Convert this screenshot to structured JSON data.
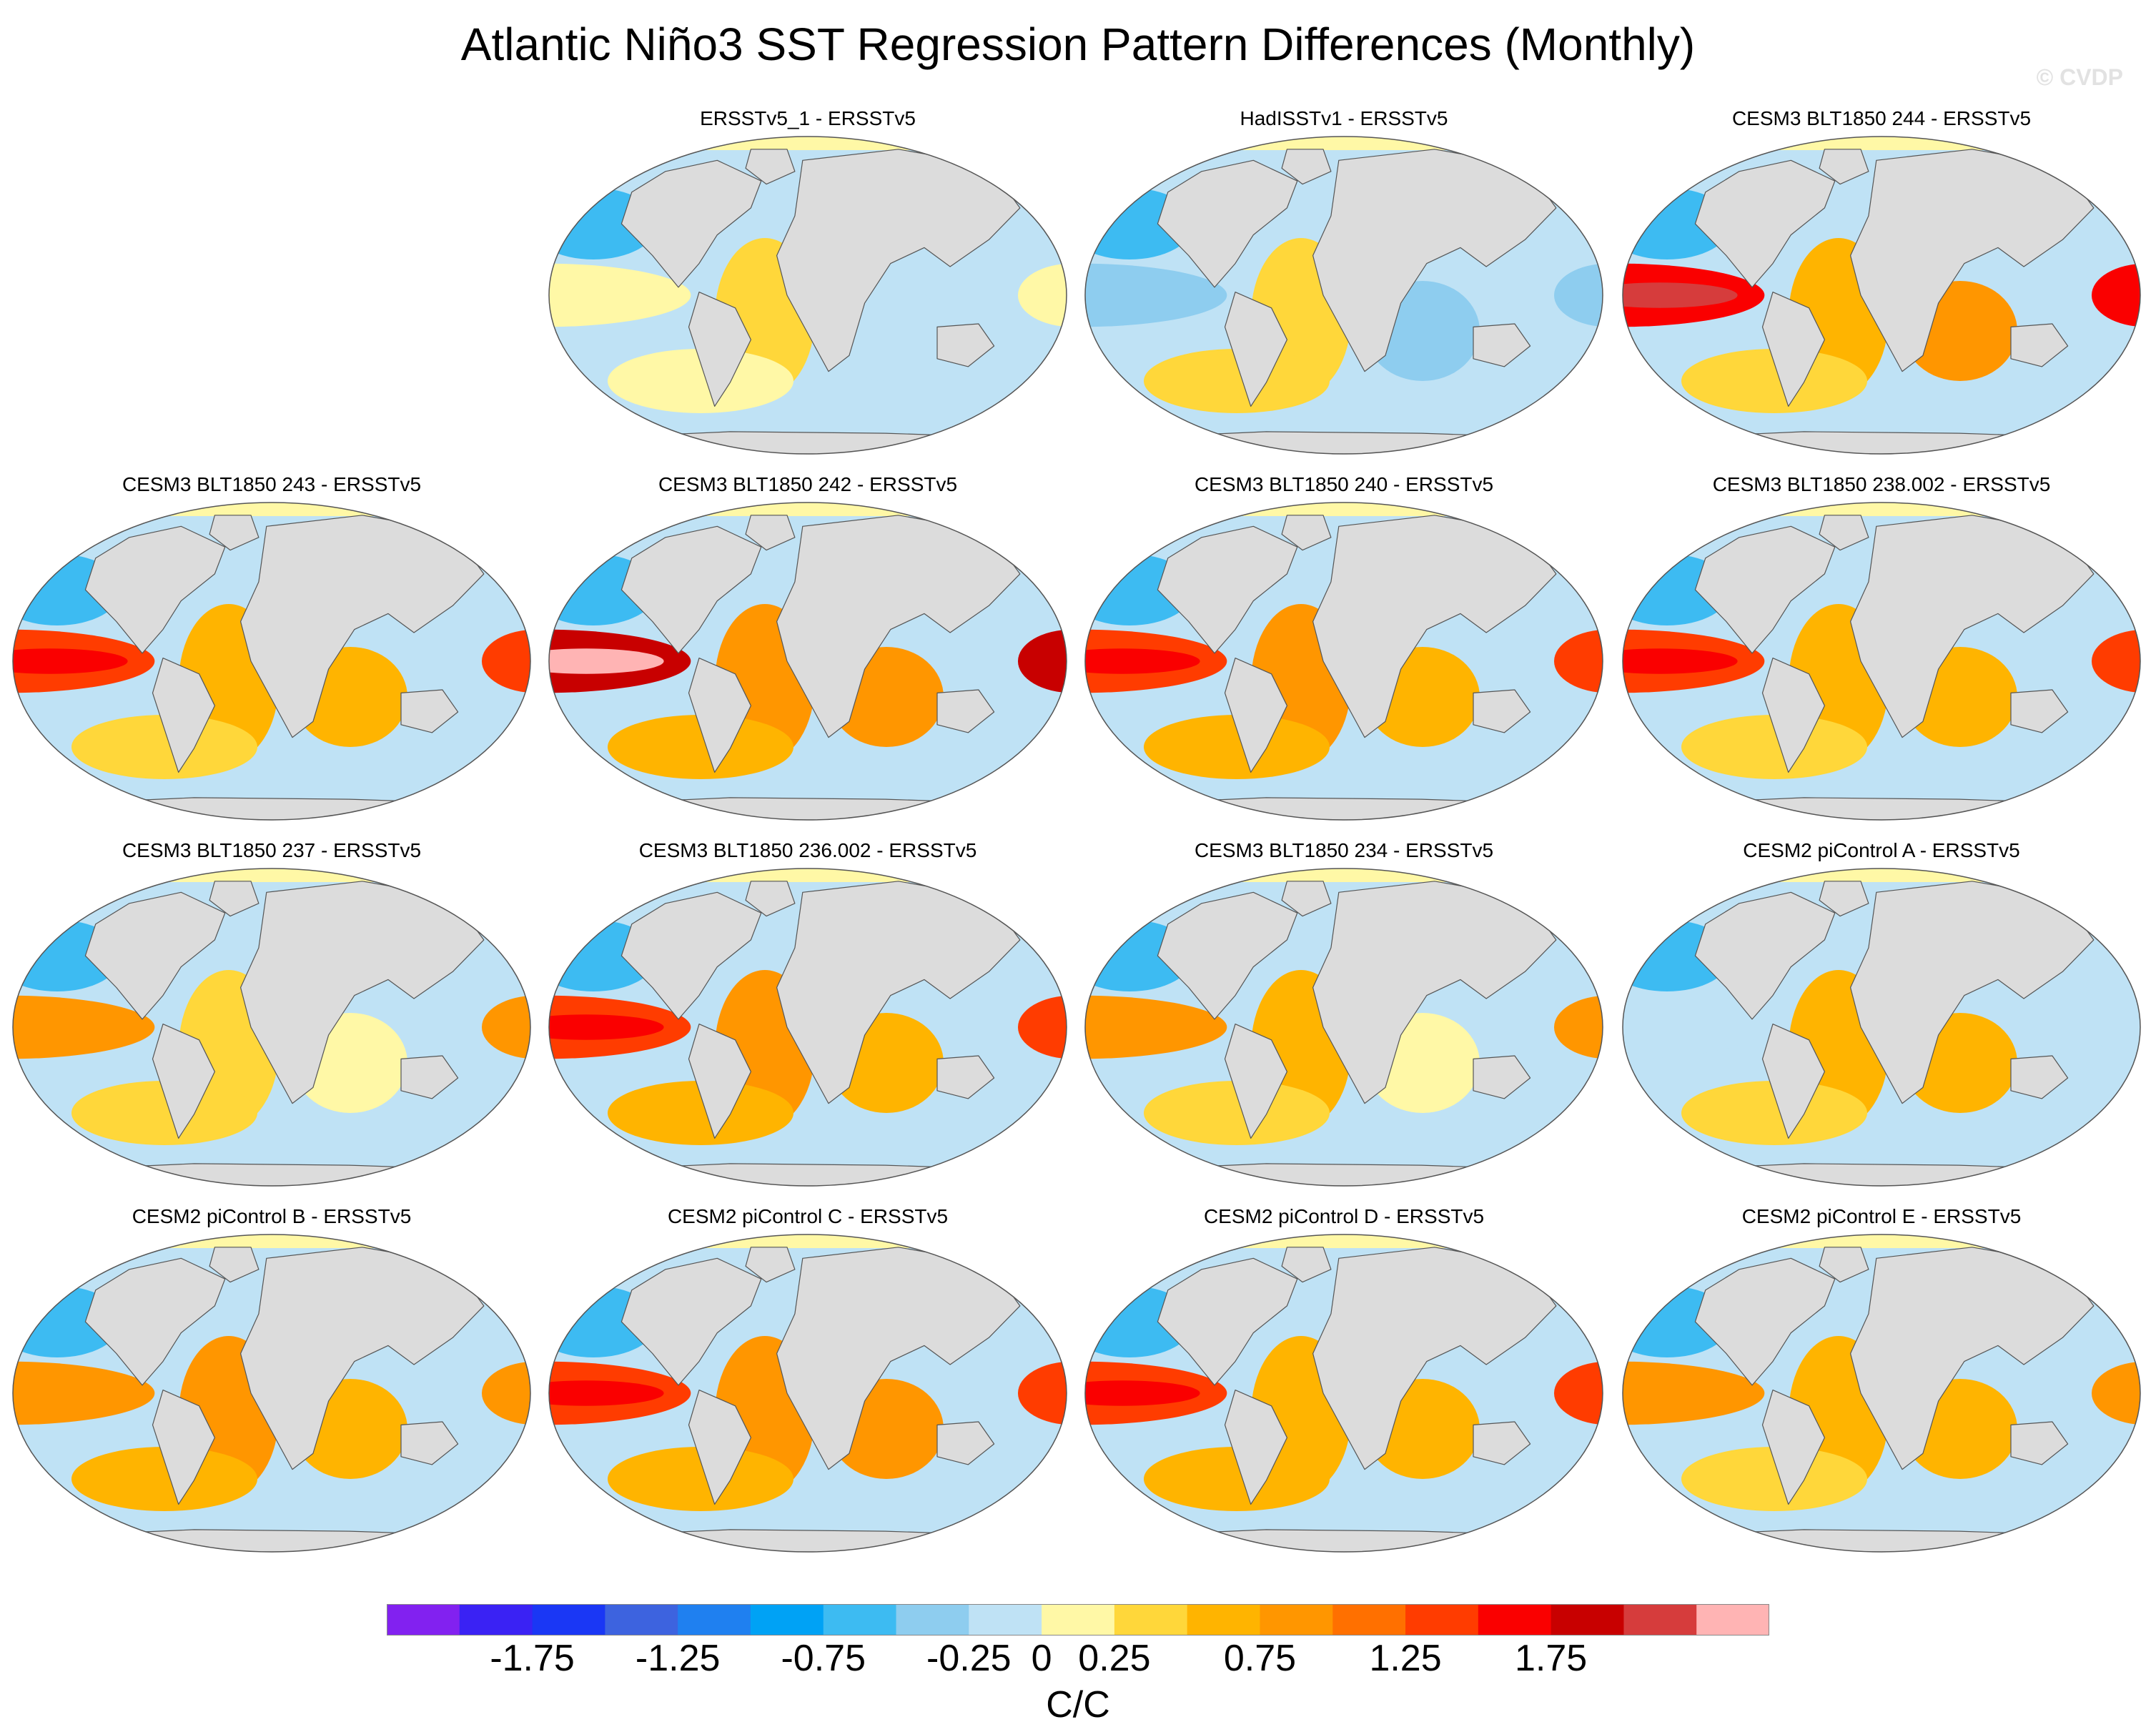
{
  "title": "Atlantic Niño3 SST Regression Pattern Differences (Monthly)",
  "watermark": "© CVDP",
  "units": "C/C",
  "panels": [
    {
      "label": "ERSSTv5_1 - ERSSTv5",
      "pacific": 0.1,
      "atlantic": 0.15,
      "indian": -0.2
    },
    {
      "label": "HadISSTv1 - ERSSTv5",
      "pacific": -0.4,
      "atlantic": 0.2,
      "indian": -0.3
    },
    {
      "label": "CESM3 BLT1850 244 - ERSSTv5",
      "pacific": 1.4,
      "atlantic": 0.3,
      "indian": 0.5
    },
    {
      "label": "CESM3 BLT1850 243 - ERSSTv5",
      "pacific": 1.0,
      "atlantic": 0.3,
      "indian": 0.4
    },
    {
      "label": "CESM3 BLT1850 242 - ERSSTv5",
      "pacific": 1.7,
      "atlantic": 0.6,
      "indian": 0.6
    },
    {
      "label": "CESM3 BLT1850 240 - ERSSTv5",
      "pacific": 1.0,
      "atlantic": 0.5,
      "indian": 0.3
    },
    {
      "label": "CESM3 BLT1850 238.002 - ERSSTv5",
      "pacific": 1.0,
      "atlantic": 0.3,
      "indian": 0.4
    },
    {
      "label": "CESM3 BLT1850 237 - ERSSTv5",
      "pacific": 0.5,
      "atlantic": 0.2,
      "indian": 0.1
    },
    {
      "label": "CESM3 BLT1850 236.002 - ERSSTv5",
      "pacific": 1.0,
      "atlantic": 0.5,
      "indian": 0.3
    },
    {
      "label": "CESM3 BLT1850 234 - ERSSTv5",
      "pacific": 0.6,
      "atlantic": 0.3,
      "indian": 0.1
    },
    {
      "label": "CESM2 piControl A - ERSSTv5",
      "pacific": -0.1,
      "atlantic": 0.3,
      "indian": 0.3
    },
    {
      "label": "CESM2 piControl B - ERSSTv5",
      "pacific": 0.6,
      "atlantic": 0.5,
      "indian": 0.3
    },
    {
      "label": "CESM2 piControl C - ERSSTv5",
      "pacific": 1.0,
      "atlantic": 0.6,
      "indian": 0.6
    },
    {
      "label": "CESM2 piControl D - ERSSTv5",
      "pacific": 1.0,
      "atlantic": 0.4,
      "indian": 0.4
    },
    {
      "label": "CESM2 piControl E - ERSSTv5",
      "pacific": 0.5,
      "atlantic": 0.3,
      "indian": 0.3
    }
  ],
  "colorbar": {
    "colors": [
      "#8221f0",
      "#3a22f4",
      "#1a37f5",
      "#3d63df",
      "#1f80f0",
      "#00a2f5",
      "#3dbbf2",
      "#8ecdef",
      "#bfe2f5",
      "#fff8a6",
      "#ffd73a",
      "#ffb400",
      "#ff9600",
      "#ff7000",
      "#ff3c00",
      "#fa0000",
      "#c80000",
      "#d63c3c",
      "#ffb4b4"
    ],
    "tick_labels": [
      "-1.75",
      "-1.25",
      "-0.75",
      "-0.25",
      "0",
      "0.25",
      "0.75",
      "1.25",
      "1.75"
    ],
    "tick_values": [
      -1.75,
      -1.25,
      -0.75,
      -0.25,
      0,
      0.25,
      0.75,
      1.25,
      1.75
    ]
  }
}
